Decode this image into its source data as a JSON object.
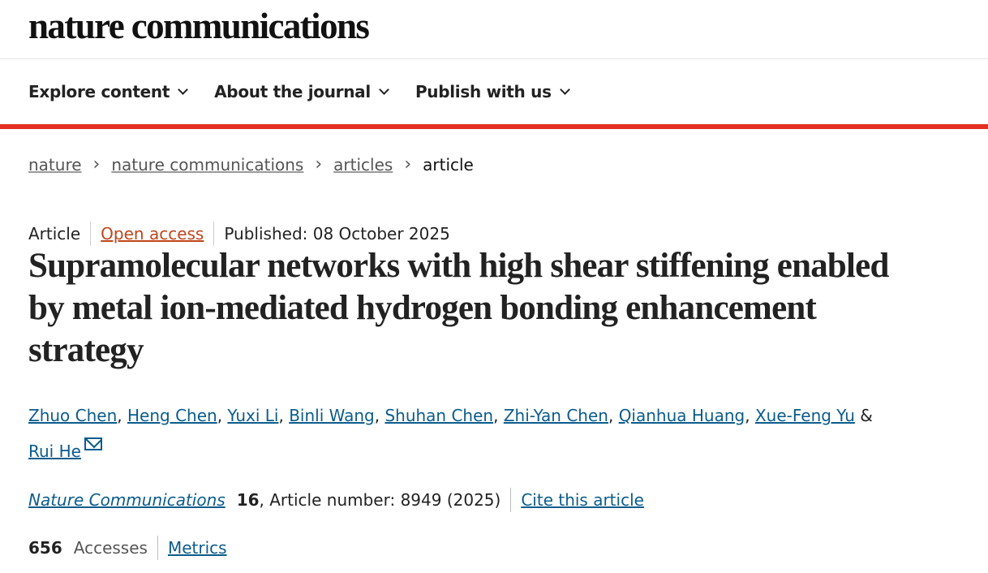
{
  "header": {
    "logo_text": "nature communications"
  },
  "nav": {
    "items": [
      {
        "label": "Explore content"
      },
      {
        "label": "About the journal"
      },
      {
        "label": "Publish with us"
      }
    ]
  },
  "colors": {
    "accent_bar": "#e32f22",
    "link": "#0b5c8c",
    "open_access": "#c0461b"
  },
  "breadcrumb": {
    "items": [
      "nature",
      "nature communications",
      "articles"
    ],
    "current": "article"
  },
  "article": {
    "type": "Article",
    "access": "Open access",
    "published": "Published: 08 October 2025",
    "title": "Supramolecular networks with high shear stiffening enabled by metal ion-mediated hydrogen bonding enhancement strategy",
    "authors": [
      "Zhuo Chen",
      "Heng Chen",
      "Yuxi Li",
      "Binli Wang",
      "Shuhan Chen",
      "Zhi-Yan Chen",
      "Qianhua Huang",
      "Xue-Feng Yu"
    ],
    "last_author": "Rui He",
    "ampersand": "&",
    "journal": "Nature Communications",
    "volume": "16",
    "article_number": ", Article number: 8949 (2025)",
    "cite_label": "Cite this article",
    "accesses_count": "656",
    "accesses_label": "Accesses",
    "metrics_label": "Metrics"
  }
}
